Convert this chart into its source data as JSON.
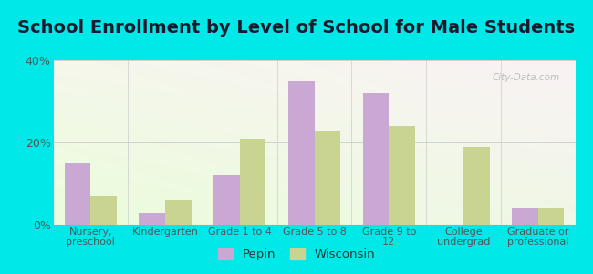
{
  "title": "School Enrollment by Level of School for Male Students",
  "categories": [
    "Nursery,\npreschool",
    "Kindergarten",
    "Grade 1 to 4",
    "Grade 5 to 8",
    "Grade 9 to\n12",
    "College\nundergrad",
    "Graduate or\nprofessional"
  ],
  "pepin": [
    15,
    3,
    12,
    35,
    32,
    0,
    4
  ],
  "wisconsin": [
    7,
    6,
    21,
    23,
    24,
    19,
    4
  ],
  "pepin_color": "#c9a8d4",
  "wisconsin_color": "#c8d490",
  "background_color": "#00e8e8",
  "ylim": [
    0,
    40
  ],
  "yticks": [
    0,
    20,
    40
  ],
  "ytick_labels": [
    "0%",
    "20%",
    "40%"
  ],
  "legend_pepin": "Pepin",
  "legend_wisconsin": "Wisconsin",
  "title_fontsize": 14,
  "bar_width": 0.35,
  "tick_fontsize": 8,
  "ytick_fontsize": 9
}
